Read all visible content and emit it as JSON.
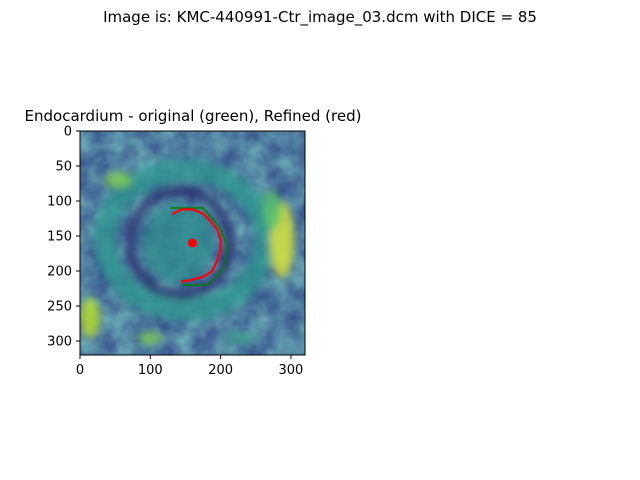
{
  "figure": {
    "suptitle": "Image is: KMC-440991-Ctr_image_03.dcm with DICE = 85"
  },
  "panel": {
    "title": "Endocardium - original (green), Refined (red)",
    "image_extent": {
      "x": [
        0,
        320
      ],
      "y": [
        0,
        320
      ]
    },
    "x_ticks": [
      "0",
      "100",
      "200",
      "300"
    ],
    "x_tick_values": [
      0,
      100,
      200,
      300
    ],
    "y_ticks": [
      "0",
      "50",
      "100",
      "150",
      "200",
      "250",
      "300"
    ],
    "y_tick_values": [
      0,
      50,
      100,
      150,
      200,
      250,
      300
    ],
    "colormap": "viridis"
  },
  "contours": {
    "original": {
      "color": "#008000",
      "points": [
        [
          130,
          110
        ],
        [
          175,
          110
        ],
        [
          190,
          127
        ],
        [
          200,
          140
        ],
        [
          210,
          165
        ],
        [
          205,
          195
        ],
        [
          190,
          212
        ],
        [
          180,
          220
        ],
        [
          145,
          220
        ]
      ]
    },
    "refined": {
      "color": "#ff0000",
      "points": [
        [
          132,
          118
        ],
        [
          145,
          112
        ],
        [
          160,
          112
        ],
        [
          175,
          118
        ],
        [
          185,
          128
        ],
        [
          195,
          140
        ],
        [
          200,
          155
        ],
        [
          200,
          170
        ],
        [
          195,
          185
        ],
        [
          188,
          200
        ],
        [
          176,
          208
        ],
        [
          158,
          213
        ],
        [
          145,
          215
        ]
      ]
    },
    "center": {
      "color": "#ff0000",
      "point": [
        160,
        160
      ]
    }
  }
}
